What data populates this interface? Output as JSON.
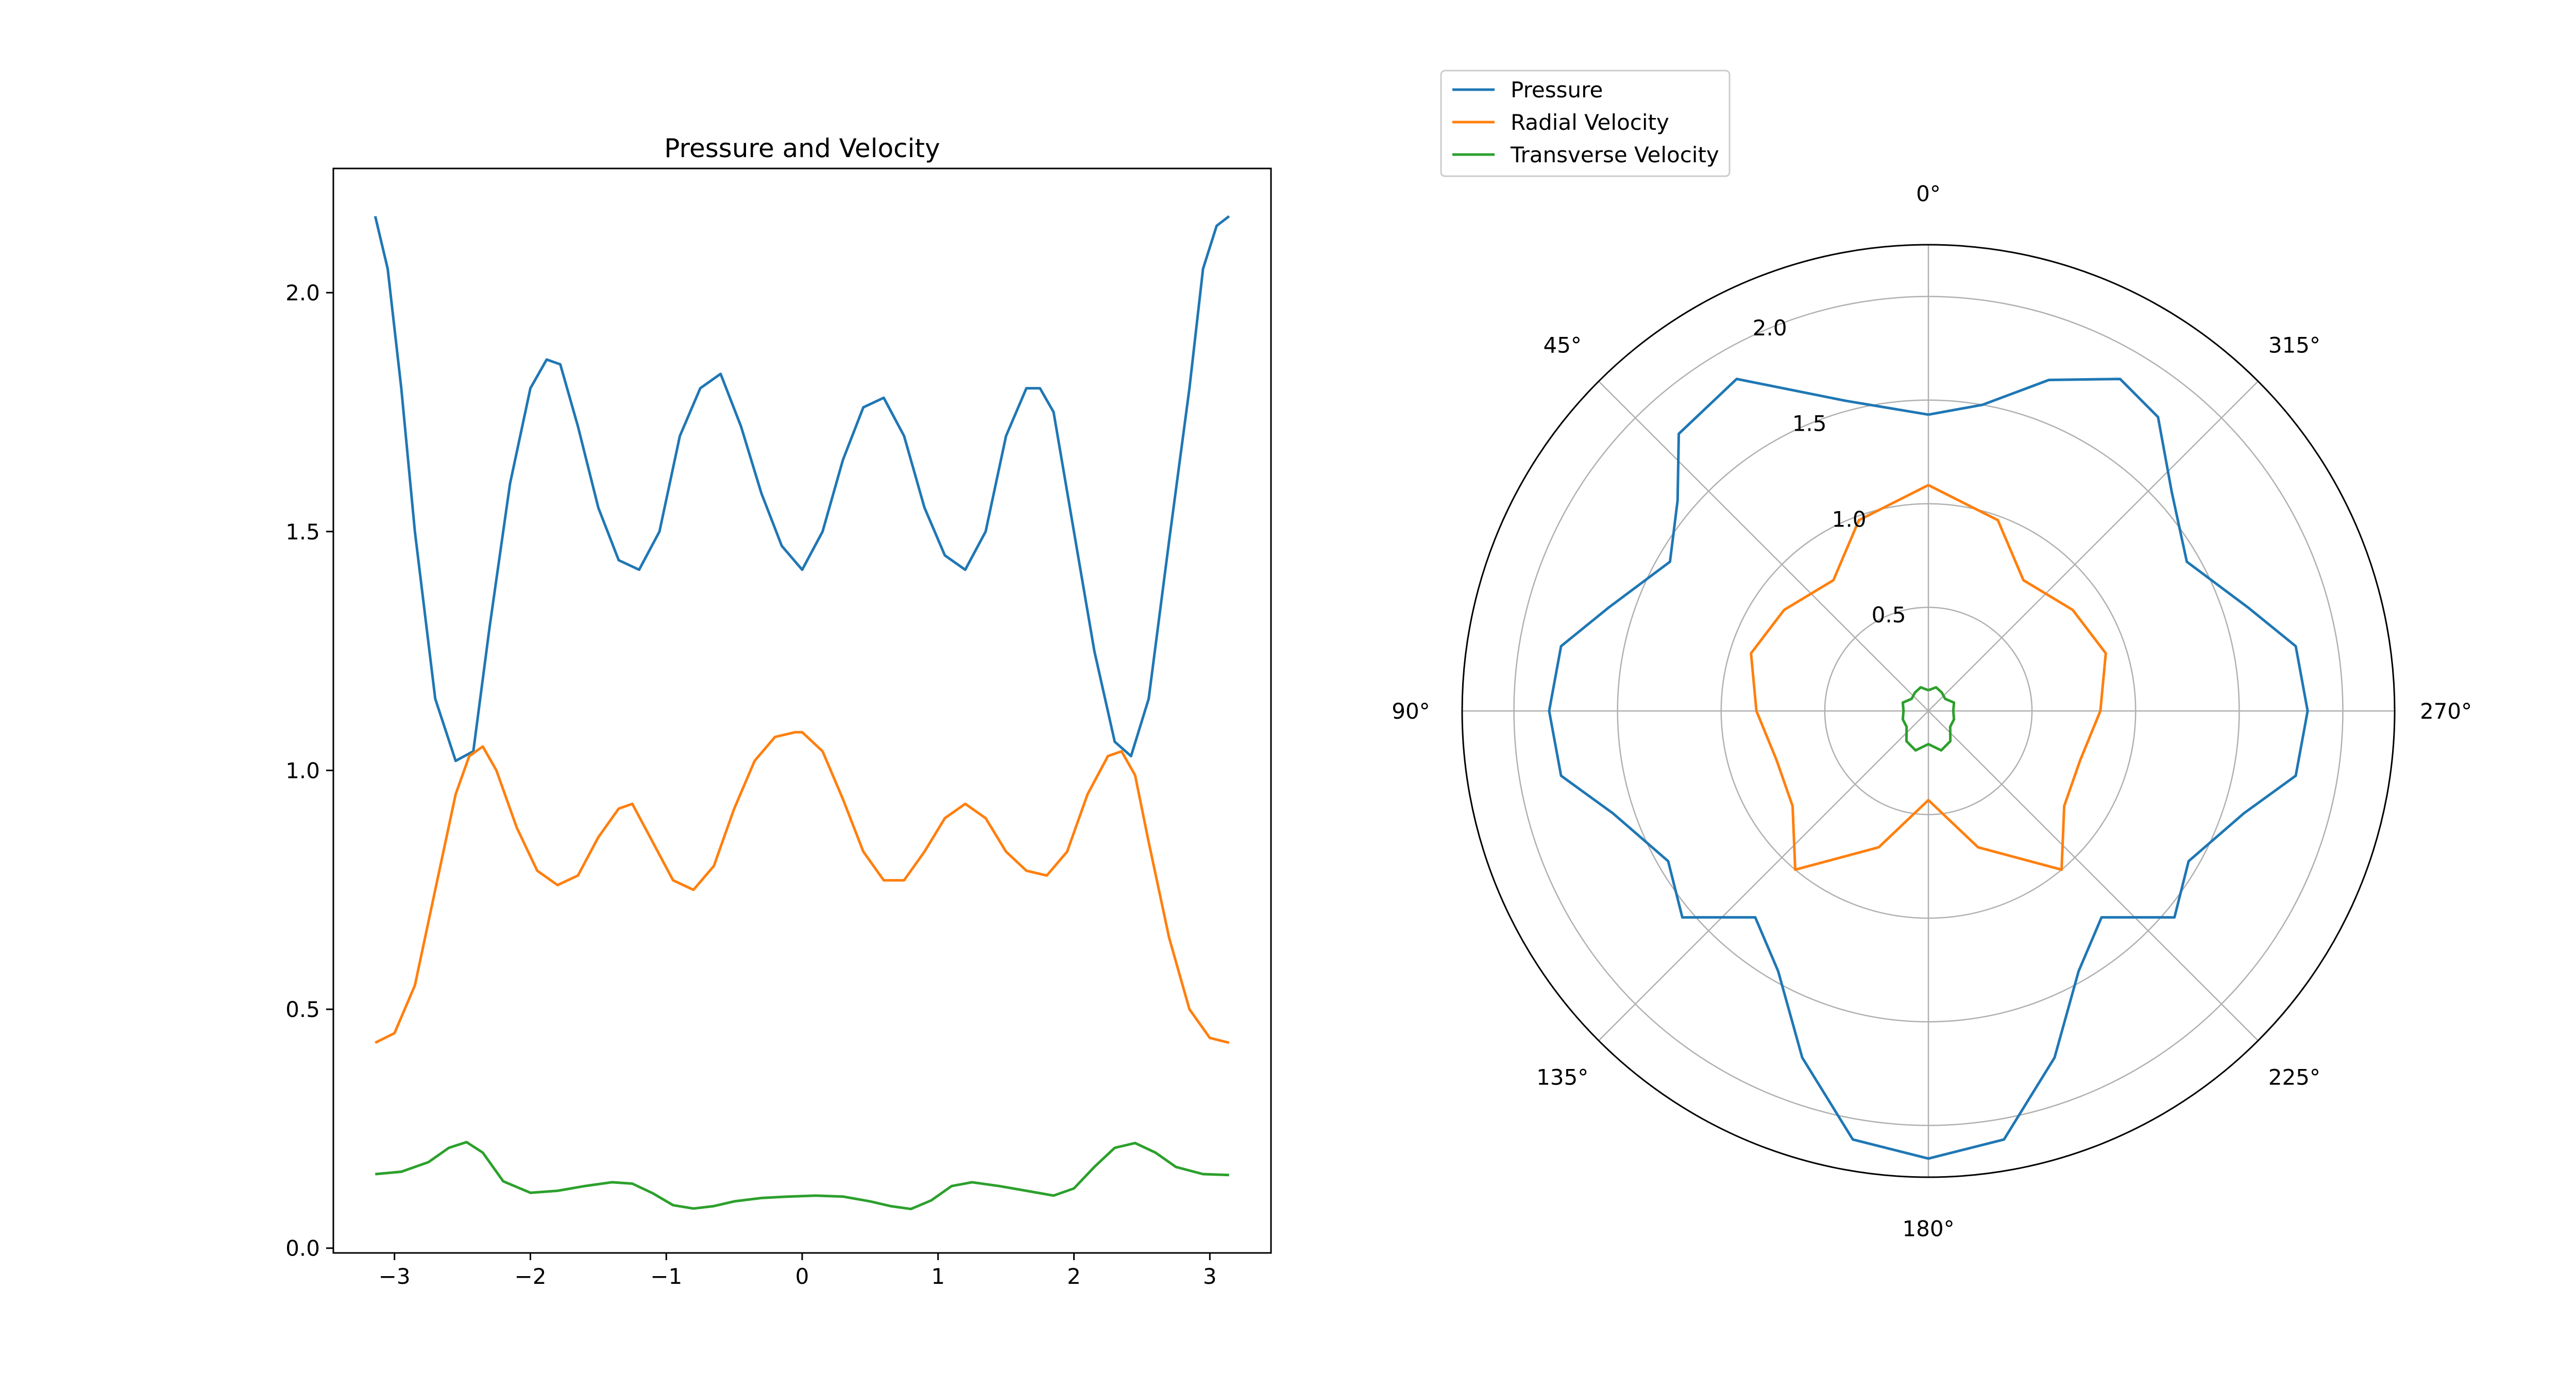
{
  "chart_data": [
    {
      "type": "line",
      "title": "Pressure and Velocity",
      "xlabel": "",
      "ylabel": "",
      "xlim": [
        -3.45,
        3.45
      ],
      "ylim": [
        -0.01,
        2.26
      ],
      "xticks": [
        -3,
        -2,
        -1,
        0,
        1,
        2,
        3
      ],
      "xtick_labels": [
        "−3",
        "−2",
        "−1",
        "0",
        "1",
        "2",
        "3"
      ],
      "yticks": [
        0.0,
        0.5,
        1.0,
        1.5,
        2.0
      ],
      "ytick_labels": [
        "0.0",
        "0.5",
        "1.0",
        "1.5",
        "2.0"
      ],
      "grid": false,
      "series": [
        {
          "name": "Pressure",
          "color": "#1f77b4",
          "x": [
            -3.1416,
            -3.05,
            -2.95,
            -2.85,
            -2.7,
            -2.55,
            -2.42,
            -2.3,
            -2.15,
            -2.0,
            -1.88,
            -1.78,
            -1.65,
            -1.5,
            -1.35,
            -1.2,
            -1.05,
            -0.9,
            -0.75,
            -0.6,
            -0.45,
            -0.3,
            -0.15,
            0.0,
            0.15,
            0.3,
            0.45,
            0.6,
            0.75,
            0.9,
            1.05,
            1.2,
            1.35,
            1.5,
            1.65,
            1.75,
            1.85,
            2.0,
            2.15,
            2.3,
            2.42,
            2.55,
            2.7,
            2.85,
            2.95,
            3.05,
            3.1416
          ],
          "y": [
            2.16,
            2.05,
            1.8,
            1.5,
            1.15,
            1.02,
            1.04,
            1.3,
            1.6,
            1.8,
            1.86,
            1.85,
            1.72,
            1.55,
            1.44,
            1.42,
            1.5,
            1.7,
            1.8,
            1.83,
            1.72,
            1.58,
            1.47,
            1.42,
            1.5,
            1.65,
            1.76,
            1.78,
            1.7,
            1.55,
            1.45,
            1.42,
            1.5,
            1.7,
            1.8,
            1.8,
            1.75,
            1.5,
            1.25,
            1.06,
            1.03,
            1.15,
            1.48,
            1.8,
            2.05,
            2.14,
            2.16
          ]
        },
        {
          "name": "Radial Velocity",
          "color": "#ff7f0e",
          "x": [
            -3.1416,
            -3.0,
            -2.85,
            -2.7,
            -2.55,
            -2.45,
            -2.35,
            -2.25,
            -2.1,
            -1.95,
            -1.8,
            -1.65,
            -1.5,
            -1.35,
            -1.25,
            -1.1,
            -0.95,
            -0.8,
            -0.65,
            -0.5,
            -0.35,
            -0.2,
            -0.05,
            0.0,
            0.15,
            0.3,
            0.45,
            0.6,
            0.75,
            0.9,
            1.05,
            1.2,
            1.35,
            1.5,
            1.65,
            1.8,
            1.95,
            2.1,
            2.25,
            2.35,
            2.45,
            2.55,
            2.7,
            2.85,
            3.0,
            3.1416
          ],
          "y": [
            0.43,
            0.45,
            0.55,
            0.75,
            0.95,
            1.03,
            1.05,
            1.0,
            0.88,
            0.79,
            0.76,
            0.78,
            0.86,
            0.92,
            0.93,
            0.85,
            0.77,
            0.75,
            0.8,
            0.92,
            1.02,
            1.07,
            1.08,
            1.08,
            1.04,
            0.94,
            0.83,
            0.77,
            0.77,
            0.83,
            0.9,
            0.93,
            0.9,
            0.83,
            0.79,
            0.78,
            0.83,
            0.95,
            1.03,
            1.04,
            0.99,
            0.85,
            0.65,
            0.5,
            0.44,
            0.43
          ]
        },
        {
          "name": "Transverse Velocity",
          "color": "#2ca02c",
          "x": [
            -3.1416,
            -2.95,
            -2.75,
            -2.6,
            -2.47,
            -2.35,
            -2.2,
            -2.0,
            -1.8,
            -1.6,
            -1.4,
            -1.25,
            -1.1,
            -0.95,
            -0.8,
            -0.65,
            -0.5,
            -0.3,
            -0.1,
            0.1,
            0.3,
            0.5,
            0.65,
            0.8,
            0.95,
            1.1,
            1.25,
            1.45,
            1.65,
            1.85,
            2.0,
            2.15,
            2.3,
            2.45,
            2.6,
            2.75,
            2.95,
            3.1416
          ],
          "y": [
            0.155,
            0.16,
            0.18,
            0.21,
            0.222,
            0.2,
            0.14,
            0.116,
            0.12,
            0.13,
            0.138,
            0.135,
            0.115,
            0.09,
            0.083,
            0.088,
            0.098,
            0.105,
            0.108,
            0.11,
            0.108,
            0.098,
            0.088,
            0.082,
            0.1,
            0.13,
            0.138,
            0.13,
            0.12,
            0.11,
            0.125,
            0.17,
            0.21,
            0.22,
            0.2,
            0.17,
            0.155,
            0.153
          ]
        }
      ]
    },
    {
      "type": "polar",
      "title": "",
      "theta_zero_location": "top",
      "theta_direction": "counterclockwise",
      "rmax": 2.25,
      "rticks": [
        0.5,
        1.0,
        1.5,
        2.0
      ],
      "rtick_labels": [
        "0.5",
        "1.0",
        "1.5",
        "2.0"
      ],
      "theta_ticks_deg": [
        0,
        45,
        90,
        135,
        180,
        225,
        270,
        315
      ],
      "theta_tick_labels": [
        "0°",
        "45°",
        "90°",
        "135°",
        "180°",
        "225°",
        "270°",
        "315°"
      ],
      "grid": true,
      "legend": {
        "position": "above-left",
        "entries": [
          "Pressure",
          "Radial Velocity",
          "Transverse Velocity"
        ]
      },
      "series": [
        {
          "name": "Pressure",
          "color": "#1f77b4",
          "theta_deg": [
            0,
            15,
            30,
            42,
            50,
            60,
            72,
            80,
            90,
            100,
            108,
            120,
            130,
            140,
            150,
            160,
            170,
            180,
            190,
            200,
            210,
            220,
            230,
            240,
            252,
            260,
            270,
            280,
            288,
            300,
            312,
            322,
            330,
            340,
            350,
            360
          ],
          "r": [
            1.43,
            1.55,
            1.85,
            1.8,
            1.58,
            1.44,
            1.62,
            1.8,
            1.83,
            1.8,
            1.6,
            1.45,
            1.55,
            1.3,
            1.45,
            1.78,
            2.1,
            2.16,
            2.1,
            1.78,
            1.45,
            1.3,
            1.55,
            1.45,
            1.6,
            1.8,
            1.83,
            1.8,
            1.62,
            1.44,
            1.58,
            1.8,
            1.85,
            1.7,
            1.5,
            1.43
          ]
        },
        {
          "name": "Radial Velocity",
          "color": "#ff7f0e",
          "theta_deg": [
            0,
            20,
            36,
            55,
            72,
            90,
            108,
            125,
            140,
            160,
            180,
            200,
            220,
            235,
            252,
            270,
            288,
            305,
            324,
            340,
            360
          ],
          "r": [
            1.09,
            0.98,
            0.78,
            0.85,
            0.9,
            0.83,
            0.77,
            0.8,
            1.0,
            0.7,
            0.43,
            0.7,
            1.0,
            0.8,
            0.77,
            0.83,
            0.9,
            0.85,
            0.78,
            0.98,
            1.09
          ]
        },
        {
          "name": "Transverse Velocity",
          "color": "#2ca02c",
          "theta_deg": [
            0,
            18,
            36,
            54,
            72,
            90,
            108,
            126,
            144,
            162,
            180,
            198,
            216,
            234,
            252,
            270,
            288,
            306,
            324,
            342,
            360
          ],
          "r": [
            0.1,
            0.12,
            0.11,
            0.1,
            0.13,
            0.12,
            0.13,
            0.13,
            0.18,
            0.2,
            0.16,
            0.2,
            0.18,
            0.13,
            0.13,
            0.12,
            0.13,
            0.1,
            0.11,
            0.12,
            0.1
          ]
        }
      ]
    }
  ]
}
